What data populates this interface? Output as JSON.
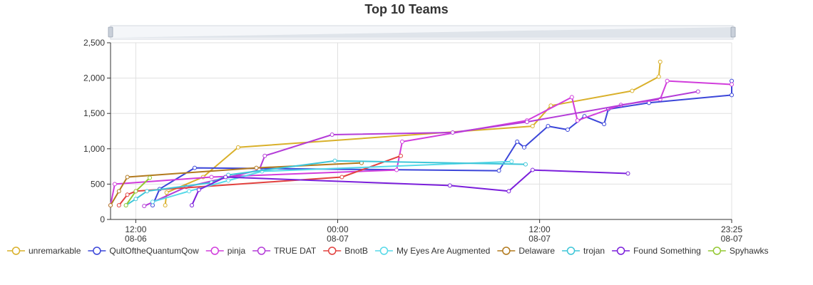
{
  "chart_data": {
    "type": "line",
    "title": "Top 10 Teams",
    "xlabel": "",
    "ylabel": "",
    "ylim": [
      0,
      2500
    ],
    "yticks": [
      "0",
      "500",
      "1,000",
      "1,500",
      "2,000",
      "2,500"
    ],
    "xlim": [
      "08-06 10:30",
      "08-07 23:25"
    ],
    "xticks": [
      {
        "time": "12:00",
        "date": "08-06"
      },
      {
        "time": "00:00",
        "date": "08-07"
      },
      {
        "time": "12:00",
        "date": "08-07"
      },
      {
        "time": "23:25",
        "date": "08-07"
      }
    ],
    "grid": true,
    "legend": "bottom",
    "has_zoom_slider": true,
    "series": [
      {
        "name": "unremarkable",
        "color": "#d9b02a",
        "points": [
          [
            "08-06 13:45",
            200
          ],
          [
            "08-06 13:50",
            380
          ],
          [
            "08-06 16:00",
            600
          ],
          [
            "08-06 18:05",
            1020
          ],
          [
            "08-07 11:35",
            1320
          ],
          [
            "08-07 12:40",
            1610
          ],
          [
            "08-07 17:30",
            1820
          ],
          [
            "08-07 19:05",
            2020
          ],
          [
            "08-07 19:10",
            2230
          ]
        ]
      },
      {
        "name": "QultOftheQuantumQow",
        "color": "#3b46d9",
        "points": [
          [
            "08-06 13:00",
            200
          ],
          [
            "08-06 13:25",
            430
          ],
          [
            "08-06 15:30",
            730
          ],
          [
            "08-07 09:35",
            690
          ],
          [
            "08-07 10:40",
            1100
          ],
          [
            "08-07 11:05",
            1020
          ],
          [
            "08-07 12:30",
            1320
          ],
          [
            "08-07 13:40",
            1270
          ],
          [
            "08-07 14:40",
            1460
          ],
          [
            "08-07 15:50",
            1350
          ],
          [
            "08-07 16:05",
            1560
          ],
          [
            "08-07 18:30",
            1650
          ],
          [
            "08-07 23:25",
            1760
          ],
          [
            "08-07 23:25",
            1960
          ]
        ]
      },
      {
        "name": "pinja",
        "color": "#d13ddc",
        "points": [
          [
            "08-06 10:30",
            200
          ],
          [
            "08-06 10:45",
            500
          ],
          [
            "08-06 16:30",
            600
          ],
          [
            "08-07 03:30",
            700
          ],
          [
            "08-07 03:50",
            1100
          ],
          [
            "08-07 11:15",
            1400
          ],
          [
            "08-07 13:55",
            1730
          ],
          [
            "08-07 14:15",
            1400
          ],
          [
            "08-07 16:50",
            1620
          ],
          [
            "08-07 19:10",
            1700
          ],
          [
            "08-07 19:35",
            1960
          ],
          [
            "08-07 23:25",
            1910
          ]
        ]
      },
      {
        "name": "TRUE DAT",
        "color": "#b43cd8",
        "points": [
          [
            "08-06 12:30",
            190
          ],
          [
            "08-06 15:00",
            460
          ],
          [
            "08-06 19:20",
            700
          ],
          [
            "08-06 19:40",
            900
          ],
          [
            "08-06 23:40",
            1200
          ],
          [
            "08-07 06:50",
            1230
          ],
          [
            "08-07 11:15",
            1380
          ],
          [
            "08-07 21:25",
            1810
          ]
        ]
      },
      {
        "name": "BnotB",
        "color": "#e2413e",
        "points": [
          [
            "08-06 11:00",
            200
          ],
          [
            "08-06 11:30",
            350
          ],
          [
            "08-06 12:00",
            400
          ],
          [
            "08-07 00:15",
            600
          ],
          [
            "08-07 03:45",
            900
          ]
        ]
      },
      {
        "name": "My Eyes Are Augmented",
        "color": "#56d9e8",
        "points": [
          [
            "08-06 13:00",
            250
          ],
          [
            "08-06 15:10",
            400
          ],
          [
            "08-06 17:30",
            550
          ],
          [
            "08-06 19:30",
            680
          ],
          [
            "08-07 10:20",
            820
          ]
        ]
      },
      {
        "name": "Delaware",
        "color": "#b27a1e",
        "points": [
          [
            "08-06 10:30",
            200
          ],
          [
            "08-06 11:00",
            400
          ],
          [
            "08-06 11:30",
            600
          ],
          [
            "08-06 19:10",
            730
          ],
          [
            "08-07 01:25",
            800
          ]
        ]
      },
      {
        "name": "trojan",
        "color": "#3ec6d8",
        "points": [
          [
            "08-06 11:25",
            200
          ],
          [
            "08-06 12:00",
            290
          ],
          [
            "08-06 12:40",
            400
          ],
          [
            "08-06 16:30",
            520
          ],
          [
            "08-06 17:30",
            630
          ],
          [
            "08-06 23:50",
            830
          ],
          [
            "08-07 11:10",
            780
          ]
        ]
      },
      {
        "name": "Found Something",
        "color": "#7b1fdb",
        "points": [
          [
            "08-06 15:20",
            200
          ],
          [
            "08-06 15:45",
            420
          ],
          [
            "08-06 17:20",
            600
          ],
          [
            "08-07 06:40",
            480
          ],
          [
            "08-07 10:10",
            400
          ],
          [
            "08-07 11:35",
            700
          ],
          [
            "08-07 17:15",
            650
          ]
        ]
      },
      {
        "name": "Spyhawks",
        "color": "#94c832",
        "points": [
          [
            "08-06 11:25",
            200
          ],
          [
            "08-06 12:00",
            400
          ],
          [
            "08-06 12:50",
            590
          ]
        ]
      }
    ]
  }
}
